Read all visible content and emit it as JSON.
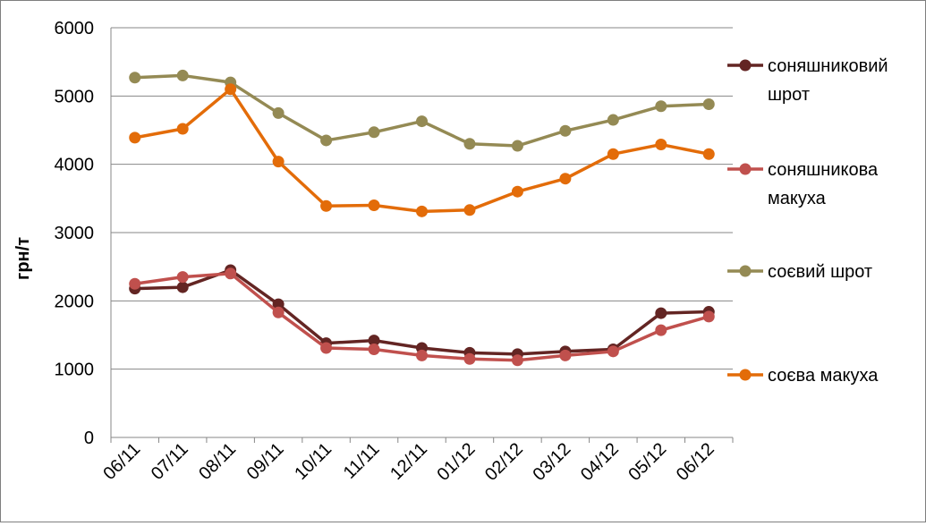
{
  "chart_data": {
    "type": "line",
    "categories": [
      "06/11",
      "07/11",
      "08/11",
      "09/11",
      "10/11",
      "11/11",
      "12/11",
      "01/12",
      "02/12",
      "03/12",
      "04/12",
      "05/12",
      "06/12"
    ],
    "ylabel": "грн/т",
    "ylim": [
      0,
      6000
    ],
    "yticks": [
      0,
      1000,
      2000,
      3000,
      4000,
      5000,
      6000
    ],
    "grid": true,
    "legend_position": "right",
    "series": [
      {
        "name": "соняшниковий шрот",
        "legend_lines": [
          "соняшниковий",
          "шрот"
        ],
        "color": "#632523",
        "values": [
          2180,
          2200,
          2450,
          1950,
          1380,
          1420,
          1310,
          1240,
          1220,
          1260,
          1290,
          1820,
          1840
        ]
      },
      {
        "name": "соняшникова макуха",
        "legend_lines": [
          "соняшникова",
          "макуха"
        ],
        "color": "#c0504d",
        "values": [
          2250,
          2350,
          2400,
          1830,
          1310,
          1290,
          1200,
          1150,
          1130,
          1200,
          1260,
          1570,
          1770
        ]
      },
      {
        "name": "соєвий шрот",
        "legend_lines": [
          "соєвий шрот"
        ],
        "color": "#948a54",
        "values": [
          5270,
          5300,
          5200,
          4750,
          4350,
          4470,
          4630,
          4300,
          4270,
          4490,
          4650,
          4850,
          4880
        ]
      },
      {
        "name": "соєва макуха",
        "legend_lines": [
          "соєва макуха"
        ],
        "color": "#e36c09",
        "values": [
          4390,
          4520,
          5100,
          4040,
          3390,
          3400,
          3310,
          3330,
          3600,
          3790,
          4150,
          4290,
          4150
        ]
      }
    ]
  }
}
